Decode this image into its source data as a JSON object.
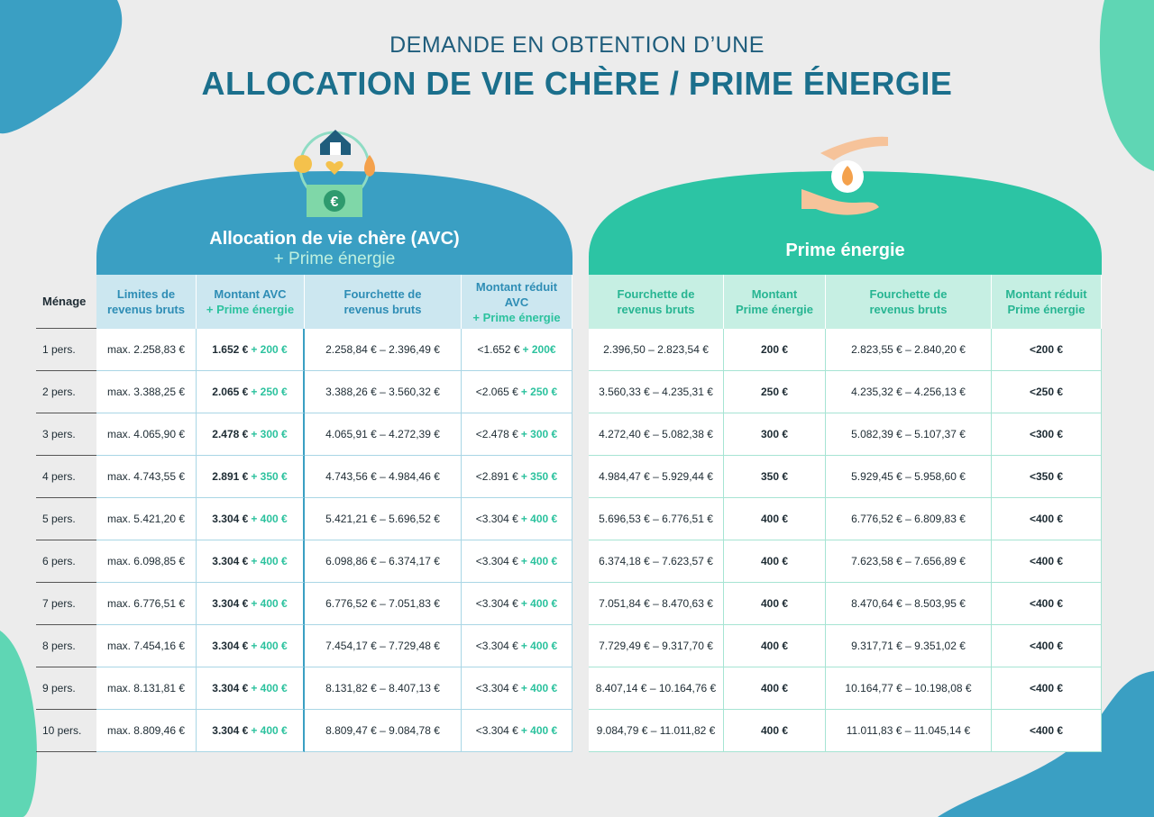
{
  "header": {
    "subtitle": "DEMANDE EN OBTENTION D’UNE",
    "title": "ALLOCATION DE VIE CHÈRE / PRIME ÉNERGIE"
  },
  "avc": {
    "title": "Allocation de vie chère (AVC)",
    "subtitle": "+ Prime énergie"
  },
  "prime": {
    "title": "Prime énergie"
  },
  "columns": [
    {
      "lines": [
        "Ménage"
      ]
    },
    {
      "lines": [
        "Limites de",
        "revenus bruts"
      ]
    },
    {
      "lines": [
        "Montant AVC"
      ],
      "extra": "+ Prime énergie"
    },
    {
      "lines": [
        "Fourchette de",
        "revenus bruts"
      ]
    },
    {
      "lines": [
        "Montant réduit",
        "AVC"
      ],
      "extra": "+ Prime énergie"
    },
    {
      "lines": [
        "Fourchette de",
        "revenus bruts"
      ]
    },
    {
      "lines": [
        "Montant",
        "Prime énergie"
      ]
    },
    {
      "lines": [
        "Fourchette de",
        "revenus bruts"
      ]
    },
    {
      "lines": [
        "Montant réduit",
        "Prime énergie"
      ]
    }
  ],
  "rows": [
    [
      "1 pers.",
      "max. 2.258,83 €",
      {
        "main": "1.652 €",
        "extra": "+ 200 €"
      },
      "2.258,84 € – 2.396,49 €",
      {
        "main": "<1.652 €",
        "extra": "+ 200€"
      },
      "2.396,50 – 2.823,54 €",
      "200 €",
      "2.823,55 € – 2.840,20 €",
      "<200 €"
    ],
    [
      "2 pers.",
      "max. 3.388,25 €",
      {
        "main": "2.065 €",
        "extra": "+ 250 €"
      },
      "3.388,26 € – 3.560,32 €",
      {
        "main": "<2.065 €",
        "extra": "+ 250 €"
      },
      "3.560,33 € – 4.235,31 €",
      "250 €",
      "4.235,32 € – 4.256,13 €",
      "<250 €"
    ],
    [
      "3 pers.",
      "max. 4.065,90 €",
      {
        "main": "2.478 €",
        "extra": "+ 300 €"
      },
      "4.065,91 € – 4.272,39 €",
      {
        "main": "<2.478 €",
        "extra": "+ 300 €"
      },
      "4.272,40 € – 5.082,38 €",
      "300 €",
      "5.082,39 € – 5.107,37 €",
      "<300 €"
    ],
    [
      "4 pers.",
      "max. 4.743,55 €",
      {
        "main": "2.891 €",
        "extra": "+ 350 €"
      },
      "4.743,56 € – 4.984,46 €",
      {
        "main": "<2.891 €",
        "extra": "+ 350 €"
      },
      "4.984,47 € – 5.929,44 €",
      "350 €",
      "5.929,45 € – 5.958,60 €",
      "<350 €"
    ],
    [
      "5 pers.",
      "max. 5.421,20 €",
      {
        "main": "3.304 €",
        "extra": "+ 400 €"
      },
      "5.421,21 € – 5.696,52 €",
      {
        "main": "<3.304 €",
        "extra": "+ 400 €"
      },
      "5.696,53 € – 6.776,51 €",
      "400 €",
      "6.776,52 € – 6.809,83 €",
      "<400 €"
    ],
    [
      "6 pers.",
      "max. 6.098,85 €",
      {
        "main": "3.304 €",
        "extra": "+ 400 €"
      },
      "6.098,86 € – 6.374,17 €",
      {
        "main": "<3.304 €",
        "extra": "+ 400 €"
      },
      "6.374,18 € – 7.623,57 €",
      "400 €",
      "7.623,58 € – 7.656,89 €",
      "<400 €"
    ],
    [
      "7 pers.",
      "max. 6.776,51 €",
      {
        "main": "3.304 €",
        "extra": "+ 400 €"
      },
      "6.776,52 € – 7.051,83 €",
      {
        "main": "<3.304 €",
        "extra": "+ 400 €"
      },
      "7.051,84 € – 8.470,63 €",
      "400 €",
      "8.470,64 € – 8.503,95 €",
      "<400 €"
    ],
    [
      "8 pers.",
      "max. 7.454,16 €",
      {
        "main": "3.304 €",
        "extra": "+ 400 €"
      },
      "7.454,17 € – 7.729,48 €",
      {
        "main": "<3.304 €",
        "extra": "+ 400 €"
      },
      "7.729,49 € – 9.317,70 €",
      "400 €",
      "9.317,71 € – 9.351,02 €",
      "<400 €"
    ],
    [
      "9 pers.",
      "max. 8.131,81 €",
      {
        "main": "3.304 €",
        "extra": "+ 400 €"
      },
      "8.131,82 € – 8.407,13 €",
      {
        "main": "<3.304 €",
        "extra": "+ 400 €"
      },
      "8.407,14 € – 10.164,76 €",
      "400 €",
      "10.164,77 € – 10.198,08 €",
      "<400 €"
    ],
    [
      "10 pers.",
      "max. 8.809,46 €",
      {
        "main": "3.304 €",
        "extra": "+ 400 €"
      },
      "8.809,47 € – 9.084,78 €",
      {
        "main": "<3.304 €",
        "extra": "+ 400 €"
      },
      "9.084,79 € – 11.011,82 €",
      "400 €",
      "11.011,83 € – 11.045,14 €",
      "<400 €"
    ]
  ]
}
